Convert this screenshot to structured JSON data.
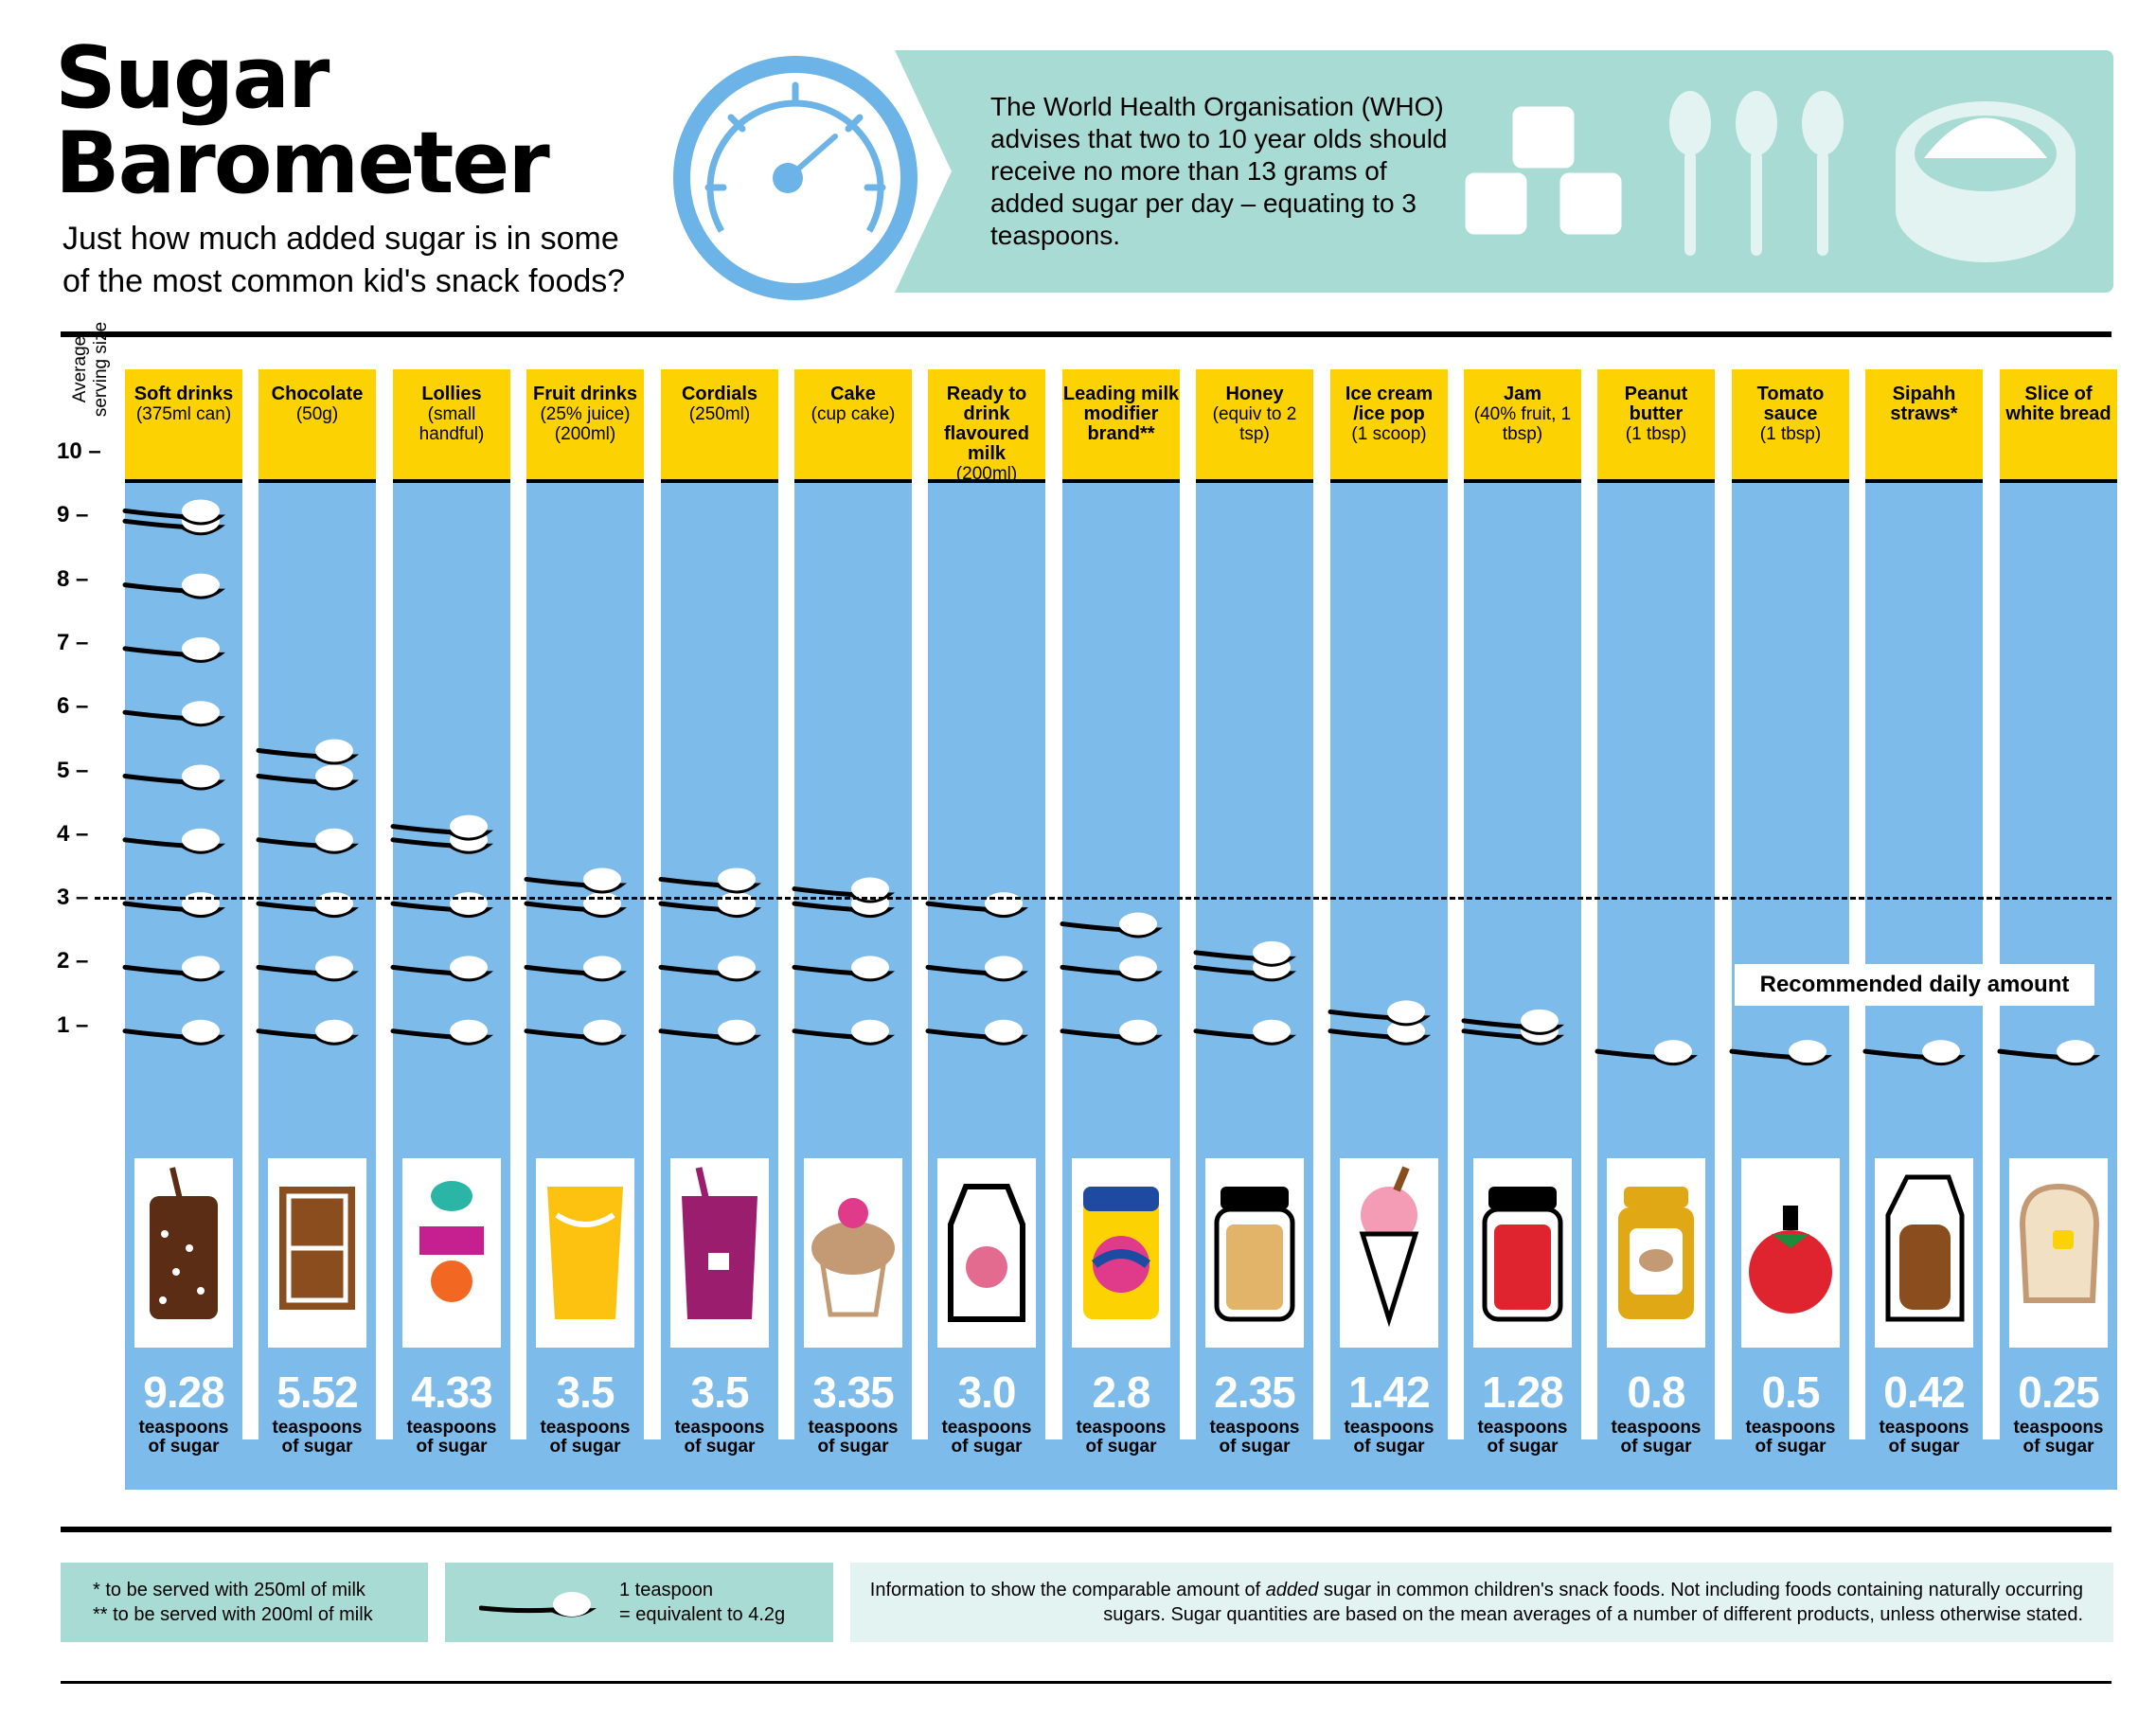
{
  "header": {
    "title_line1": "Sugar",
    "title_line2": "Barometer",
    "subtitle_line1": "Just how much added sugar is in some",
    "subtitle_line2": "of the most common kid's snack foods?",
    "who_text": "The World Health Organisation (WHO) advises that two to 10 year olds should receive no more than 13 grams of added sugar per day – equating to 3 teaspoons."
  },
  "colors": {
    "column_blue": "#7dbbea",
    "header_yellow": "#fdd203",
    "panel_teal": "#a8dbd4",
    "gauge_blue": "#6cb3e8"
  },
  "icons": [
    "barometer-gauge-icon",
    "sugar-cubes-icon",
    "teaspoon-icon",
    "sugar-bowl-icon"
  ],
  "chart_data": {
    "type": "bar",
    "ylabel": "Average serving size",
    "ylim": [
      0,
      10
    ],
    "yticks": [
      "1 –",
      "2 –",
      "3 –",
      "4 –",
      "5 –",
      "6 –",
      "7 –",
      "8 –",
      "9 –",
      "10 –"
    ],
    "reference_line": {
      "value": 3,
      "label": "Recommended daily amount"
    },
    "unit_line1": "teaspoons",
    "unit_line2": "of sugar",
    "categories": [
      {
        "name": "Soft drinks",
        "detail": "(375ml can)",
        "value": 9.28,
        "label": "9.28",
        "icon": "soft-drink-glass-icon"
      },
      {
        "name": "Chocolate",
        "detail": "(50g)",
        "value": 5.52,
        "label": "5.52",
        "icon": "chocolate-bar-icon"
      },
      {
        "name": "Lollies",
        "detail": "(small handful)",
        "value": 4.33,
        "label": "4.33",
        "icon": "lollies-candy-icon"
      },
      {
        "name": "Fruit drinks",
        "detail": "(25% juice) (200ml)",
        "value": 3.5,
        "label": "3.5",
        "icon": "fruit-drink-glass-icon"
      },
      {
        "name": "Cordials",
        "detail": "(250ml)",
        "value": 3.5,
        "label": "3.5",
        "icon": "cordial-glass-icon"
      },
      {
        "name": "Cake",
        "detail": "(cup cake)",
        "value": 3.35,
        "label": "3.35",
        "icon": "cupcake-icon"
      },
      {
        "name": "Ready to drink flavoured milk",
        "detail": "(200ml)",
        "value": 3.0,
        "label": "3.0",
        "icon": "milk-carton-icon"
      },
      {
        "name": "Leading milk modifier brand**",
        "detail": "",
        "value": 2.8,
        "label": "2.8",
        "icon": "milk-modifier-tin-icon"
      },
      {
        "name": "Honey",
        "detail": "(equiv to 2 tsp)",
        "value": 2.35,
        "label": "2.35",
        "icon": "honey-jar-icon"
      },
      {
        "name": "Ice cream /ice pop",
        "detail": "(1 scoop)",
        "value": 1.42,
        "label": "1.42",
        "icon": "ice-cream-cone-icon"
      },
      {
        "name": "Jam",
        "detail": "(40% fruit, 1 tbsp)",
        "value": 1.28,
        "label": "1.28",
        "icon": "jam-jar-icon"
      },
      {
        "name": "Peanut butter",
        "detail": "(1 tbsp)",
        "value": 0.8,
        "label": "0.8",
        "icon": "peanut-butter-jar-icon"
      },
      {
        "name": "Tomato sauce",
        "detail": "(1 tbsp)",
        "value": 0.5,
        "label": "0.5",
        "icon": "tomato-sauce-icon"
      },
      {
        "name": "Sipahh straws*",
        "detail": "",
        "value": 0.42,
        "label": "0.42",
        "icon": "sipahh-box-icon"
      },
      {
        "name": "Slice of white bread",
        "detail": "",
        "value": 0.25,
        "label": "0.25",
        "icon": "bread-slice-icon"
      }
    ]
  },
  "footer": {
    "note1": "* to be served with 250ml of milk",
    "note2": "** to be served with 200ml of milk",
    "teaspoon_line1": "1 teaspoon",
    "teaspoon_line2": "= equivalent to 4.2g",
    "info_before": "Information to show the comparable amount of ",
    "info_em": "added",
    "info_after": " sugar in common children's snack foods. Not including foods containing naturally occurring sugars. Sugar quantities are based on the mean averages of a number of different products, unless otherwise stated."
  }
}
